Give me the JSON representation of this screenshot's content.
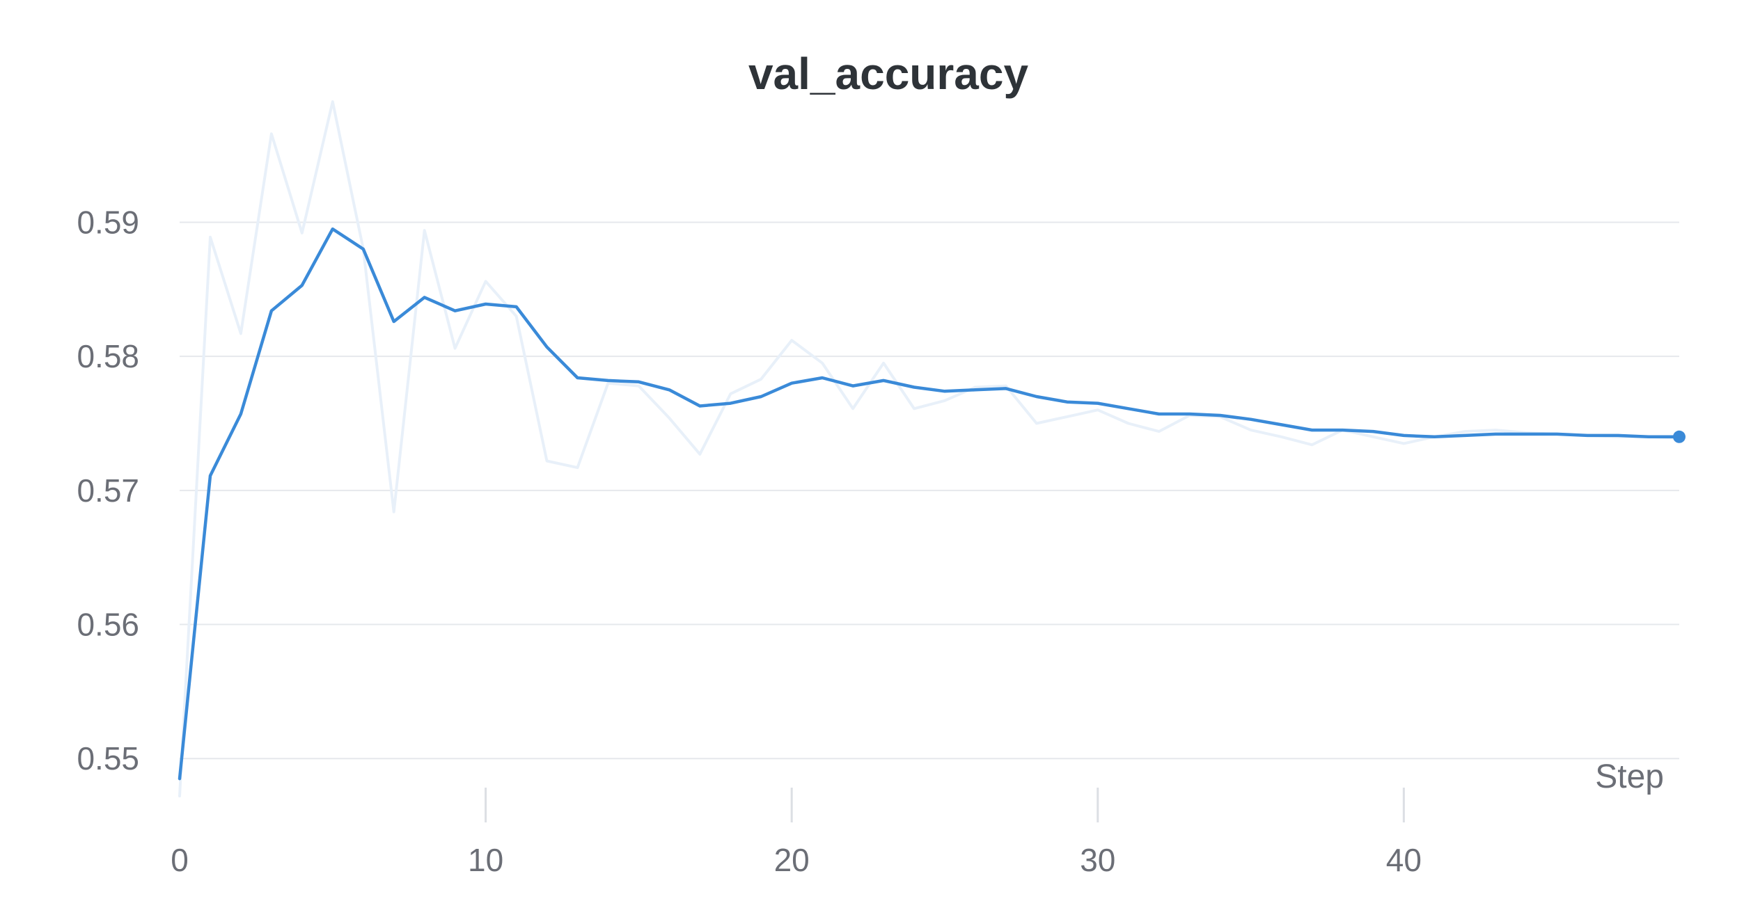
{
  "chart_data": {
    "type": "line",
    "title": "val_accuracy",
    "xlabel": "Step",
    "ylabel": "",
    "xlim": [
      0,
      49
    ],
    "ylim": [
      0.547,
      0.5975
    ],
    "xticks": [
      0,
      10,
      20,
      30,
      40
    ],
    "yticks": [
      0.55,
      0.56,
      0.57,
      0.58,
      0.59
    ],
    "ytick_labels": [
      "0.55",
      "0.56",
      "0.57",
      "0.58",
      "0.59"
    ],
    "xtick_labels": [
      "0",
      "10",
      "20",
      "30",
      "40"
    ],
    "grid": "horizontal",
    "colors": {
      "smoothed": "#3a8ad8",
      "raw": "#e8f0f9"
    },
    "series": [
      {
        "kind": "raw",
        "x": [
          0,
          1,
          2,
          3,
          4,
          5,
          6,
          7,
          8,
          9,
          10,
          11,
          12,
          13,
          14,
          15,
          16,
          17,
          18,
          19,
          20,
          21,
          22,
          23,
          24,
          25,
          26,
          27,
          28,
          29,
          30,
          31,
          32,
          33,
          34,
          35,
          36,
          37,
          38,
          39,
          40,
          41,
          42,
          43,
          44,
          45,
          46,
          47,
          48,
          49
        ],
        "values": [
          0.5472,
          0.5889,
          0.5817,
          0.5966,
          0.5892,
          0.599,
          0.588,
          0.5684,
          0.5894,
          0.5806,
          0.5856,
          0.583,
          0.5722,
          0.5717,
          0.578,
          0.5778,
          0.5754,
          0.5727,
          0.5772,
          0.5783,
          0.5812,
          0.5795,
          0.5761,
          0.5795,
          0.5761,
          0.5767,
          0.5777,
          0.5778,
          0.575,
          0.5755,
          0.576,
          0.575,
          0.5744,
          0.5756,
          0.5755,
          0.5745,
          0.574,
          0.5734,
          0.5745,
          0.574,
          0.5735,
          0.574,
          0.5744,
          0.5745,
          0.5743,
          0.5742,
          0.5741,
          0.574,
          0.574,
          0.5739
        ]
      },
      {
        "kind": "smoothed",
        "x": [
          0,
          1,
          2,
          3,
          4,
          5,
          6,
          7,
          8,
          9,
          10,
          11,
          12,
          13,
          14,
          15,
          16,
          17,
          18,
          19,
          20,
          21,
          22,
          23,
          24,
          25,
          26,
          27,
          28,
          29,
          30,
          31,
          32,
          33,
          34,
          35,
          36,
          37,
          38,
          39,
          40,
          41,
          42,
          43,
          44,
          45,
          46,
          47,
          48,
          49
        ],
        "values": [
          0.5485,
          0.5711,
          0.5757,
          0.5834,
          0.5853,
          0.5895,
          0.588,
          0.5826,
          0.5844,
          0.5834,
          0.5839,
          0.5837,
          0.5807,
          0.5784,
          0.5782,
          0.5781,
          0.5775,
          0.5763,
          0.5765,
          0.577,
          0.578,
          0.5784,
          0.5778,
          0.5782,
          0.5777,
          0.5774,
          0.5775,
          0.5776,
          0.577,
          0.5766,
          0.5765,
          0.5761,
          0.5757,
          0.5757,
          0.5756,
          0.5753,
          0.5749,
          0.5745,
          0.5745,
          0.5744,
          0.5741,
          0.574,
          0.5741,
          0.5742,
          0.5742,
          0.5742,
          0.5741,
          0.5741,
          0.574,
          0.574
        ]
      }
    ]
  }
}
